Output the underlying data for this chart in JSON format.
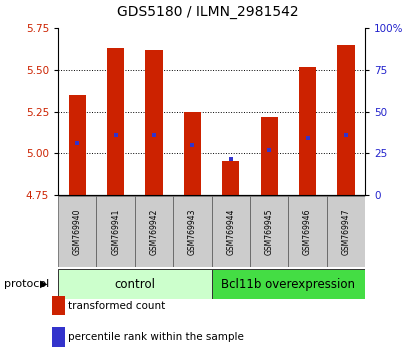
{
  "title": "GDS5180 / ILMN_2981542",
  "samples": [
    "GSM769940",
    "GSM769941",
    "GSM769942",
    "GSM769943",
    "GSM769944",
    "GSM769945",
    "GSM769946",
    "GSM769947"
  ],
  "bar_bottom": 4.75,
  "bar_tops": [
    5.35,
    5.63,
    5.62,
    5.25,
    4.95,
    5.22,
    5.52,
    5.65
  ],
  "percentile_values": [
    5.06,
    5.11,
    5.11,
    5.05,
    4.965,
    5.02,
    5.09,
    5.11
  ],
  "bar_color": "#cc2200",
  "percentile_color": "#3333cc",
  "ylim_left": [
    4.75,
    5.75
  ],
  "ylim_right": [
    0,
    100
  ],
  "yticks_left": [
    4.75,
    5.0,
    5.25,
    5.5,
    5.75
  ],
  "yticks_right": [
    0,
    25,
    50,
    75,
    100
  ],
  "ytick_labels_right": [
    "0",
    "25",
    "50",
    "75",
    "100%"
  ],
  "control_label": "control",
  "treatment_label": "Bcl11b overexpression",
  "control_color": "#ccffcc",
  "treatment_color": "#44dd44",
  "protocol_label": "protocol",
  "legend_bar_label": "transformed count",
  "legend_pct_label": "percentile rank within the sample",
  "bar_width": 0.45,
  "left_tick_color": "#cc2200",
  "right_tick_color": "#2222cc",
  "grid_yticks": [
    5.0,
    5.25,
    5.5
  ],
  "n_control": 4,
  "n_treatment": 4
}
